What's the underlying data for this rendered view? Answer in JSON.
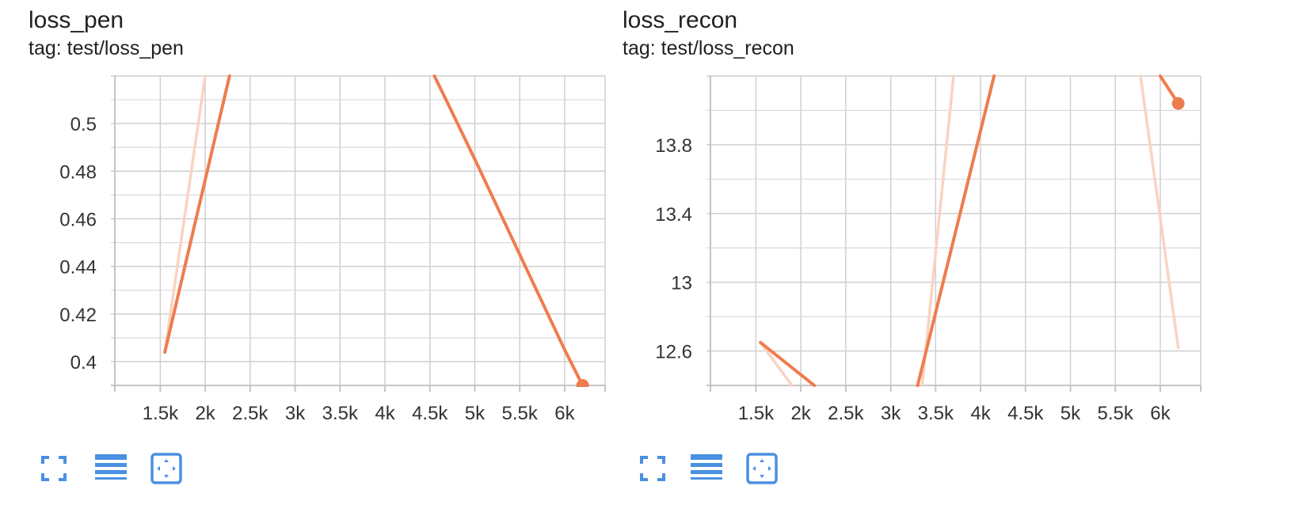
{
  "colors": {
    "line": "#ef7c4f",
    "line_raw": "#f9d3c2",
    "accent": "#4a90e2"
  },
  "toolbar_icons": [
    "fullscreen-icon",
    "list-icon",
    "fit-domain-icon"
  ],
  "charts": [
    {
      "title": "loss_pen",
      "tag": "tag: test/loss_pen",
      "chart_data": {
        "type": "line",
        "x_ticks": [
          1500,
          2000,
          2500,
          3000,
          3500,
          4000,
          4500,
          5000,
          5500,
          6000
        ],
        "x_tick_labels": [
          "1.5k",
          "2k",
          "2.5k",
          "3k",
          "3.5k",
          "4k",
          "4.5k",
          "5k",
          "5.5k",
          "6k"
        ],
        "y_ticks": [
          0.4,
          0.42,
          0.44,
          0.46,
          0.48,
          0.5
        ],
        "y_tick_labels": [
          "0.4",
          "0.42",
          "0.44",
          "0.46",
          "0.48",
          "0.5"
        ],
        "xlim": [
          950,
          6450
        ],
        "ylim": [
          0.39,
          0.52
        ],
        "grid": true,
        "series": [
          {
            "role": "smoothed",
            "x": [
              1550,
              2270
            ],
            "y": [
              0.404,
              0.52
            ]
          },
          {
            "role": "smoothed",
            "x": [
              4550,
              4680,
              5000,
              5500,
              6000,
              6200
            ],
            "y": [
              0.52,
              0.51,
              0.485,
              0.445,
              0.405,
              0.39
            ]
          },
          {
            "role": "raw",
            "x": [
              1550,
              2000
            ],
            "y": [
              0.404,
              0.52
            ]
          }
        ],
        "marker": {
          "x": 6200,
          "y": 0.39
        }
      }
    },
    {
      "title": "loss_recon",
      "tag": "tag: test/loss_recon",
      "chart_data": {
        "type": "line",
        "x_ticks": [
          1500,
          2000,
          2500,
          3000,
          3500,
          4000,
          4500,
          5000,
          5500,
          6000
        ],
        "x_tick_labels": [
          "1.5k",
          "2k",
          "2.5k",
          "3k",
          "3.5k",
          "4k",
          "4.5k",
          "5k",
          "5.5k",
          "6k"
        ],
        "y_ticks": [
          12.6,
          13,
          13.4,
          13.8
        ],
        "y_tick_labels": [
          "12.6",
          "13",
          "13.4",
          "13.8"
        ],
        "xlim": [
          950,
          6450
        ],
        "ylim": [
          12.4,
          14.2
        ],
        "grid": true,
        "series": [
          {
            "role": "smoothed",
            "x": [
              1550,
              2150
            ],
            "y": [
              12.65,
              12.4
            ]
          },
          {
            "role": "smoothed",
            "x": [
              3300,
              4150
            ],
            "y": [
              12.4,
              14.2
            ]
          },
          {
            "role": "smoothed",
            "x": [
              6000,
              6200
            ],
            "y": [
              14.2,
              14.04
            ]
          },
          {
            "role": "raw",
            "x": [
              1550,
              1900
            ],
            "y": [
              12.65,
              12.4
            ]
          },
          {
            "role": "raw",
            "x": [
              3350,
              3700
            ],
            "y": [
              12.4,
              14.2
            ]
          },
          {
            "role": "raw",
            "x": [
              5780,
              6200
            ],
            "y": [
              14.2,
              12.62
            ]
          }
        ],
        "marker": {
          "x": 6200,
          "y": 14.04
        }
      }
    }
  ]
}
